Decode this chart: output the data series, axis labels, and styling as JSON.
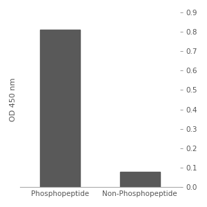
{
  "categories": [
    "Phosphopeptide",
    "Non-Phosphopeptide"
  ],
  "values": [
    0.81,
    0.08
  ],
  "bar_color": "#595959",
  "ylabel": "OD 450 nm",
  "ylim": [
    0,
    0.9
  ],
  "yticks": [
    0,
    0.1,
    0.2,
    0.3,
    0.4,
    0.5,
    0.6,
    0.7,
    0.8,
    0.9
  ],
  "bar_width": 0.5,
  "background_color": "#ffffff",
  "tick_fontsize": 7.5,
  "label_fontsize": 8,
  "text_color": "#555555"
}
